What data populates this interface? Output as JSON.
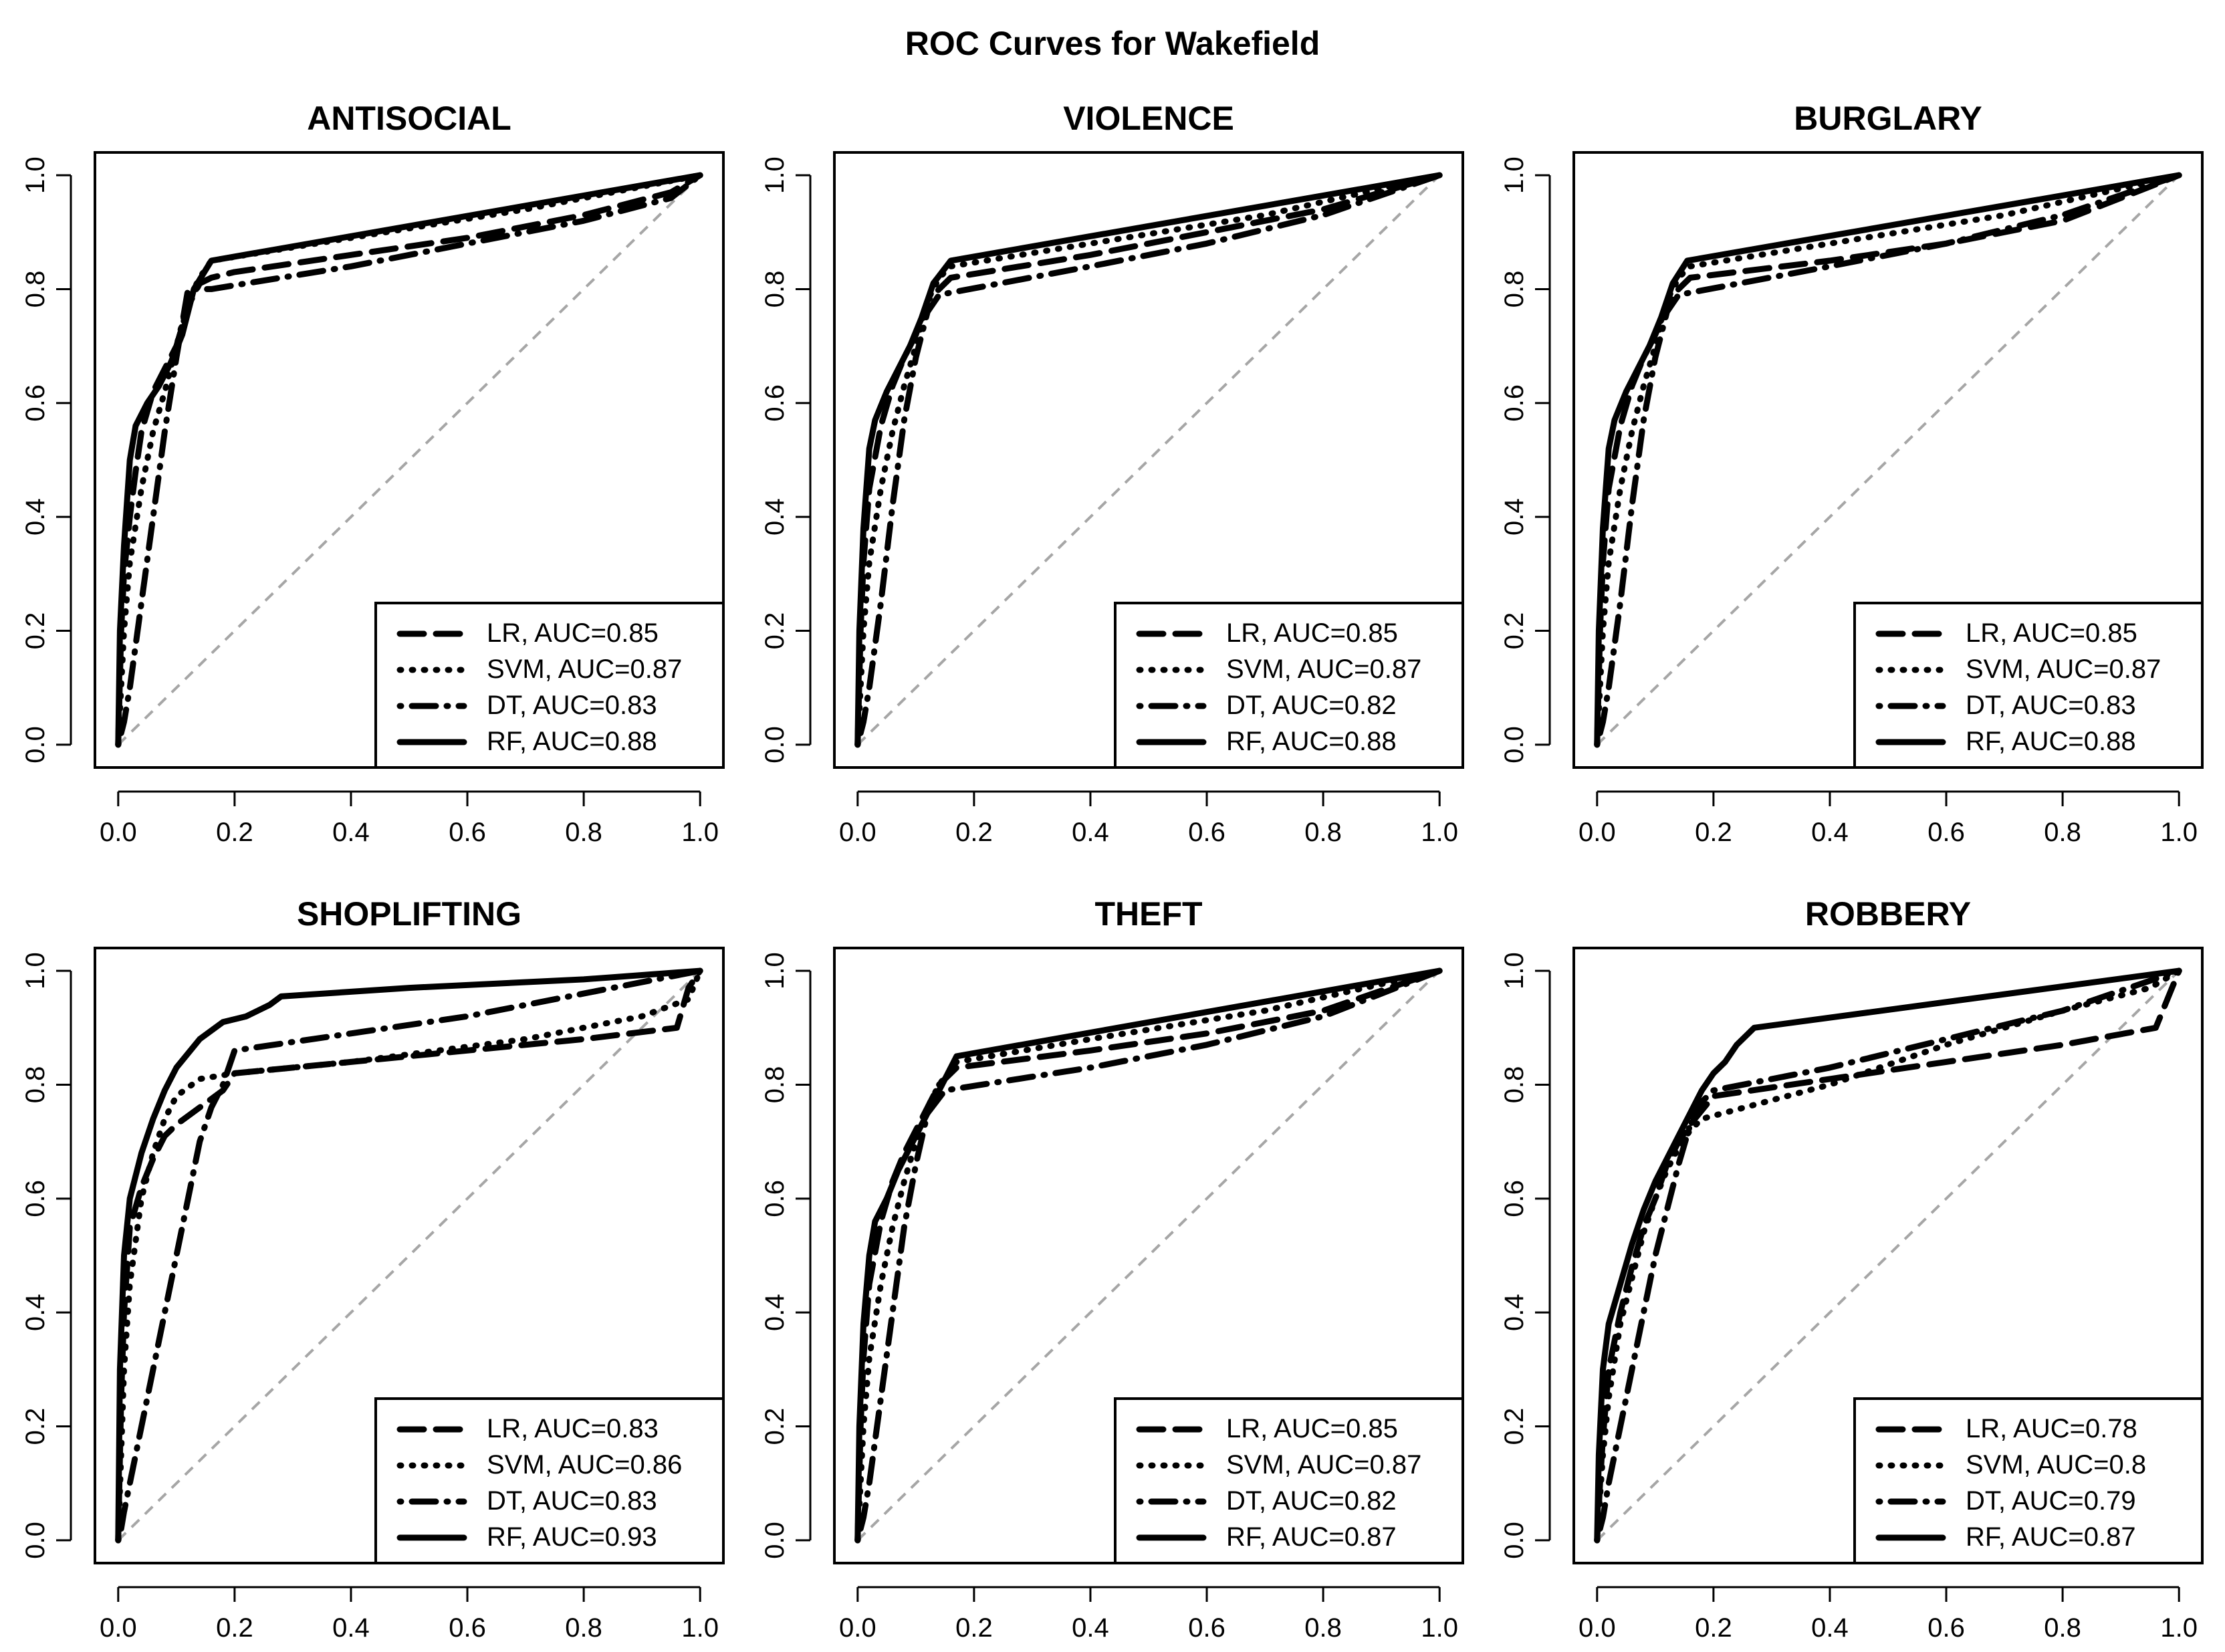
{
  "figure_title": "ROC Curves for Wakefield",
  "colors": {
    "curve": "#000000",
    "diagonal": "#a6a6a6",
    "background": "#ffffff"
  },
  "chart_data": [
    {
      "type": "line",
      "title": "ANTISOCIAL",
      "xlim": [
        0,
        1
      ],
      "ylim": [
        0,
        1
      ],
      "xticks": [
        "0.0",
        "0.2",
        "0.4",
        "0.6",
        "0.8",
        "1.0"
      ],
      "yticks": [
        "0.0",
        "0.2",
        "0.4",
        "0.6",
        "0.8",
        "1.0"
      ],
      "legend_position": "bottom-right",
      "series": [
        {
          "name": "LR",
          "legend": "LR, AUC=0.85",
          "style": "dashed",
          "x": [
            0,
            0.005,
            0.01,
            0.02,
            0.03,
            0.04,
            0.06,
            0.08,
            0.1,
            0.12,
            0.14,
            0.16,
            0.2,
            0.4,
            0.6,
            0.8,
            0.95,
            1
          ],
          "y": [
            0,
            0.2,
            0.3,
            0.4,
            0.48,
            0.55,
            0.62,
            0.66,
            0.7,
            0.77,
            0.81,
            0.82,
            0.83,
            0.86,
            0.89,
            0.93,
            0.97,
            1
          ]
        },
        {
          "name": "SVM",
          "legend": "SVM, AUC=0.87",
          "style": "dotted",
          "x": [
            0,
            0.01,
            0.02,
            0.04,
            0.06,
            0.08,
            0.1,
            0.12,
            0.14,
            0.16,
            0.4,
            0.7,
            1
          ],
          "y": [
            0,
            0.2,
            0.32,
            0.45,
            0.55,
            0.62,
            0.7,
            0.78,
            0.82,
            0.85,
            0.89,
            0.94,
            1
          ]
        },
        {
          "name": "DT",
          "legend": "DT, AUC=0.83",
          "style": "dotdash",
          "x": [
            0,
            0.01,
            0.02,
            0.04,
            0.06,
            0.08,
            0.1,
            0.12,
            0.16,
            0.4,
            0.6,
            0.8,
            0.95,
            1
          ],
          "y": [
            0,
            0.04,
            0.1,
            0.25,
            0.4,
            0.55,
            0.68,
            0.8,
            0.8,
            0.84,
            0.88,
            0.92,
            0.96,
            1
          ]
        },
        {
          "name": "RF",
          "legend": "RF, AUC=0.88",
          "style": "solid",
          "x": [
            0,
            0.003,
            0.01,
            0.02,
            0.03,
            0.05,
            0.07,
            0.09,
            0.11,
            0.13,
            0.16,
            1
          ],
          "y": [
            0,
            0.2,
            0.35,
            0.5,
            0.56,
            0.6,
            0.63,
            0.67,
            0.72,
            0.8,
            0.85,
            1
          ]
        }
      ]
    },
    {
      "type": "line",
      "title": "VIOLENCE",
      "xlim": [
        0,
        1
      ],
      "ylim": [
        0,
        1
      ],
      "xticks": [
        "0.0",
        "0.2",
        "0.4",
        "0.6",
        "0.8",
        "1.0"
      ],
      "yticks": [
        "0.0",
        "0.2",
        "0.4",
        "0.6",
        "0.8",
        "1.0"
      ],
      "legend_position": "bottom-right",
      "series": [
        {
          "name": "LR",
          "legend": "LR, AUC=0.85",
          "style": "dashed",
          "x": [
            0,
            0.005,
            0.01,
            0.02,
            0.04,
            0.06,
            0.08,
            0.1,
            0.12,
            0.14,
            0.16,
            0.4,
            0.6,
            0.8,
            1
          ],
          "y": [
            0,
            0.2,
            0.32,
            0.45,
            0.56,
            0.63,
            0.68,
            0.72,
            0.78,
            0.8,
            0.82,
            0.86,
            0.9,
            0.94,
            1
          ]
        },
        {
          "name": "SVM",
          "legend": "SVM, AUC=0.87",
          "style": "dotted",
          "x": [
            0,
            0.01,
            0.02,
            0.04,
            0.06,
            0.08,
            0.1,
            0.12,
            0.14,
            0.16,
            0.4,
            0.7,
            1
          ],
          "y": [
            0,
            0.2,
            0.32,
            0.45,
            0.55,
            0.63,
            0.7,
            0.78,
            0.82,
            0.84,
            0.88,
            0.93,
            1
          ]
        },
        {
          "name": "DT",
          "legend": "DT, AUC=0.82",
          "style": "dotdash",
          "x": [
            0,
            0.01,
            0.02,
            0.04,
            0.06,
            0.08,
            0.1,
            0.12,
            0.14,
            0.4,
            0.6,
            0.8,
            1
          ],
          "y": [
            0,
            0.04,
            0.1,
            0.25,
            0.42,
            0.57,
            0.68,
            0.76,
            0.79,
            0.84,
            0.88,
            0.93,
            1
          ]
        },
        {
          "name": "RF",
          "legend": "RF, AUC=0.88",
          "style": "solid",
          "x": [
            0,
            0.003,
            0.01,
            0.02,
            0.03,
            0.05,
            0.07,
            0.09,
            0.11,
            0.13,
            0.16,
            1
          ],
          "y": [
            0,
            0.2,
            0.38,
            0.52,
            0.57,
            0.62,
            0.66,
            0.7,
            0.75,
            0.81,
            0.85,
            1
          ]
        }
      ]
    },
    {
      "type": "line",
      "title": "BURGLARY",
      "xlim": [
        0,
        1
      ],
      "ylim": [
        0,
        1
      ],
      "xticks": [
        "0.0",
        "0.2",
        "0.4",
        "0.6",
        "0.8",
        "1.0"
      ],
      "yticks": [
        "0.0",
        "0.2",
        "0.4",
        "0.6",
        "0.8",
        "1.0"
      ],
      "legend_position": "bottom-right",
      "series": [
        {
          "name": "LR",
          "legend": "LR, AUC=0.85",
          "style": "dashed",
          "x": [
            0,
            0.005,
            0.01,
            0.02,
            0.04,
            0.06,
            0.08,
            0.1,
            0.12,
            0.14,
            0.16,
            0.4,
            0.6,
            0.8,
            1
          ],
          "y": [
            0,
            0.2,
            0.32,
            0.45,
            0.56,
            0.63,
            0.68,
            0.72,
            0.77,
            0.8,
            0.82,
            0.85,
            0.88,
            0.92,
            1
          ]
        },
        {
          "name": "SVM",
          "legend": "SVM, AUC=0.87",
          "style": "dotted",
          "x": [
            0,
            0.01,
            0.02,
            0.04,
            0.06,
            0.08,
            0.1,
            0.12,
            0.14,
            0.16,
            0.4,
            0.7,
            1
          ],
          "y": [
            0,
            0.2,
            0.32,
            0.45,
            0.55,
            0.63,
            0.7,
            0.78,
            0.82,
            0.84,
            0.88,
            0.93,
            1
          ]
        },
        {
          "name": "DT",
          "legend": "DT, AUC=0.83",
          "style": "dotdash",
          "x": [
            0,
            0.01,
            0.02,
            0.04,
            0.06,
            0.08,
            0.1,
            0.12,
            0.14,
            0.4,
            0.6,
            0.8,
            1
          ],
          "y": [
            0,
            0.04,
            0.1,
            0.25,
            0.42,
            0.57,
            0.68,
            0.76,
            0.79,
            0.84,
            0.88,
            0.93,
            1
          ]
        },
        {
          "name": "RF",
          "legend": "RF, AUC=0.88",
          "style": "solid",
          "x": [
            0,
            0.003,
            0.01,
            0.02,
            0.03,
            0.05,
            0.07,
            0.09,
            0.11,
            0.13,
            0.155,
            1
          ],
          "y": [
            0,
            0.2,
            0.38,
            0.52,
            0.57,
            0.62,
            0.66,
            0.7,
            0.75,
            0.81,
            0.85,
            1
          ]
        }
      ]
    },
    {
      "type": "line",
      "title": "SHOPLIFTING",
      "xlim": [
        0,
        1
      ],
      "ylim": [
        0,
        1
      ],
      "xticks": [
        "0.0",
        "0.2",
        "0.4",
        "0.6",
        "0.8",
        "1.0"
      ],
      "yticks": [
        "0.0",
        "0.2",
        "0.4",
        "0.6",
        "0.8",
        "1.0"
      ],
      "legend_position": "bottom-right",
      "series": [
        {
          "name": "LR",
          "legend": "LR, AUC=0.83",
          "style": "dashed",
          "x": [
            0,
            0.005,
            0.01,
            0.02,
            0.04,
            0.06,
            0.08,
            0.1,
            0.14,
            0.18,
            0.2,
            0.4,
            0.6,
            0.8,
            0.96,
            0.98,
            1
          ],
          "y": [
            0,
            0.25,
            0.4,
            0.55,
            0.62,
            0.67,
            0.71,
            0.73,
            0.76,
            0.79,
            0.82,
            0.84,
            0.86,
            0.88,
            0.9,
            0.97,
            1
          ]
        },
        {
          "name": "SVM",
          "legend": "SVM, AUC=0.86",
          "style": "dotted",
          "x": [
            0,
            0.01,
            0.02,
            0.04,
            0.06,
            0.08,
            0.1,
            0.14,
            0.2,
            0.4,
            0.7,
            0.9,
            0.98,
            1
          ],
          "y": [
            0,
            0.3,
            0.45,
            0.6,
            0.68,
            0.74,
            0.78,
            0.81,
            0.82,
            0.84,
            0.88,
            0.92,
            0.95,
            1
          ]
        },
        {
          "name": "DT",
          "legend": "DT, AUC=0.83",
          "style": "dotdash",
          "x": [
            0,
            0.005,
            0.01,
            0.02,
            0.04,
            0.06,
            0.08,
            0.1,
            0.12,
            0.14,
            0.16,
            0.18,
            0.2,
            0.4,
            0.6,
            0.8,
            1
          ],
          "y": [
            0,
            0.02,
            0.05,
            0.1,
            0.2,
            0.3,
            0.4,
            0.5,
            0.6,
            0.7,
            0.76,
            0.8,
            0.86,
            0.89,
            0.92,
            0.96,
            1
          ]
        },
        {
          "name": "RF",
          "legend": "RF, AUC=0.93",
          "style": "solid",
          "x": [
            0,
            0.003,
            0.01,
            0.02,
            0.04,
            0.06,
            0.08,
            0.1,
            0.14,
            0.18,
            0.22,
            0.26,
            0.28,
            0.5,
            0.8,
            1
          ],
          "y": [
            0,
            0.3,
            0.5,
            0.6,
            0.68,
            0.74,
            0.79,
            0.83,
            0.88,
            0.91,
            0.92,
            0.94,
            0.955,
            0.97,
            0.985,
            1
          ]
        }
      ]
    },
    {
      "type": "line",
      "title": "THEFT",
      "xlim": [
        0,
        1
      ],
      "ylim": [
        0,
        1
      ],
      "xticks": [
        "0.0",
        "0.2",
        "0.4",
        "0.6",
        "0.8",
        "1.0"
      ],
      "yticks": [
        "0.0",
        "0.2",
        "0.4",
        "0.6",
        "0.8",
        "1.0"
      ],
      "legend_position": "bottom-right",
      "series": [
        {
          "name": "LR",
          "legend": "LR, AUC=0.85",
          "style": "dashed",
          "x": [
            0,
            0.005,
            0.01,
            0.02,
            0.04,
            0.06,
            0.08,
            0.1,
            0.12,
            0.14,
            0.17,
            0.4,
            0.6,
            0.8,
            1
          ],
          "y": [
            0,
            0.2,
            0.32,
            0.45,
            0.56,
            0.63,
            0.68,
            0.72,
            0.76,
            0.8,
            0.83,
            0.86,
            0.89,
            0.93,
            1
          ]
        },
        {
          "name": "SVM",
          "legend": "SVM, AUC=0.87",
          "style": "dotted",
          "x": [
            0,
            0.01,
            0.02,
            0.04,
            0.06,
            0.08,
            0.1,
            0.12,
            0.14,
            0.17,
            0.4,
            0.7,
            1
          ],
          "y": [
            0,
            0.2,
            0.32,
            0.45,
            0.55,
            0.63,
            0.7,
            0.76,
            0.8,
            0.84,
            0.88,
            0.93,
            1
          ]
        },
        {
          "name": "DT",
          "legend": "DT, AUC=0.82",
          "style": "dotdash",
          "x": [
            0,
            0.01,
            0.02,
            0.04,
            0.06,
            0.08,
            0.1,
            0.12,
            0.15,
            0.4,
            0.6,
            0.8,
            1
          ],
          "y": [
            0,
            0.04,
            0.1,
            0.25,
            0.4,
            0.55,
            0.66,
            0.75,
            0.79,
            0.83,
            0.87,
            0.92,
            1
          ]
        },
        {
          "name": "RF",
          "legend": "RF, AUC=0.87",
          "style": "solid",
          "x": [
            0,
            0.003,
            0.01,
            0.02,
            0.03,
            0.05,
            0.07,
            0.09,
            0.11,
            0.13,
            0.15,
            0.17,
            1
          ],
          "y": [
            0,
            0.2,
            0.38,
            0.5,
            0.56,
            0.6,
            0.65,
            0.69,
            0.73,
            0.77,
            0.81,
            0.85,
            1
          ]
        }
      ]
    },
    {
      "type": "line",
      "title": "ROBBERY",
      "xlim": [
        0,
        1
      ],
      "ylim": [
        0,
        1
      ],
      "xticks": [
        "0.0",
        "0.2",
        "0.4",
        "0.6",
        "0.8",
        "1.0"
      ],
      "yticks": [
        "0.0",
        "0.2",
        "0.4",
        "0.6",
        "0.8",
        "1.0"
      ],
      "legend_position": "bottom-right",
      "series": [
        {
          "name": "LR",
          "legend": "LR, AUC=0.78",
          "style": "dashed",
          "x": [
            0,
            0.005,
            0.01,
            0.02,
            0.04,
            0.06,
            0.08,
            0.1,
            0.12,
            0.14,
            0.16,
            0.2,
            0.4,
            0.6,
            0.8,
            0.96,
            0.98,
            1
          ],
          "y": [
            0,
            0.1,
            0.18,
            0.3,
            0.4,
            0.48,
            0.55,
            0.6,
            0.66,
            0.7,
            0.73,
            0.78,
            0.81,
            0.84,
            0.87,
            0.9,
            0.95,
            1
          ]
        },
        {
          "name": "SVM",
          "legend": "SVM, AUC=0.8",
          "style": "dotted",
          "x": [
            0,
            0.01,
            0.02,
            0.04,
            0.06,
            0.08,
            0.1,
            0.12,
            0.14,
            0.16,
            0.18,
            0.4,
            0.6,
            0.8,
            0.95,
            1
          ],
          "y": [
            0,
            0.15,
            0.25,
            0.38,
            0.46,
            0.54,
            0.6,
            0.65,
            0.69,
            0.72,
            0.74,
            0.8,
            0.87,
            0.93,
            0.97,
            1
          ]
        },
        {
          "name": "DT",
          "legend": "DT, AUC=0.79",
          "style": "dotdash",
          "x": [
            0,
            0.01,
            0.02,
            0.04,
            0.06,
            0.08,
            0.1,
            0.12,
            0.14,
            0.16,
            0.18,
            0.2,
            0.4,
            0.6,
            0.8,
            1
          ],
          "y": [
            0,
            0.04,
            0.1,
            0.2,
            0.3,
            0.4,
            0.5,
            0.58,
            0.66,
            0.73,
            0.77,
            0.79,
            0.83,
            0.88,
            0.93,
            1
          ]
        },
        {
          "name": "RF",
          "legend": "RF, AUC=0.87",
          "style": "solid",
          "x": [
            0,
            0.003,
            0.01,
            0.02,
            0.04,
            0.06,
            0.08,
            0.1,
            0.12,
            0.14,
            0.16,
            0.18,
            0.2,
            0.22,
            0.24,
            0.26,
            0.27,
            1
          ],
          "y": [
            0,
            0.15,
            0.3,
            0.38,
            0.45,
            0.52,
            0.58,
            0.63,
            0.67,
            0.71,
            0.75,
            0.79,
            0.82,
            0.84,
            0.87,
            0.89,
            0.9,
            1
          ]
        }
      ]
    }
  ]
}
